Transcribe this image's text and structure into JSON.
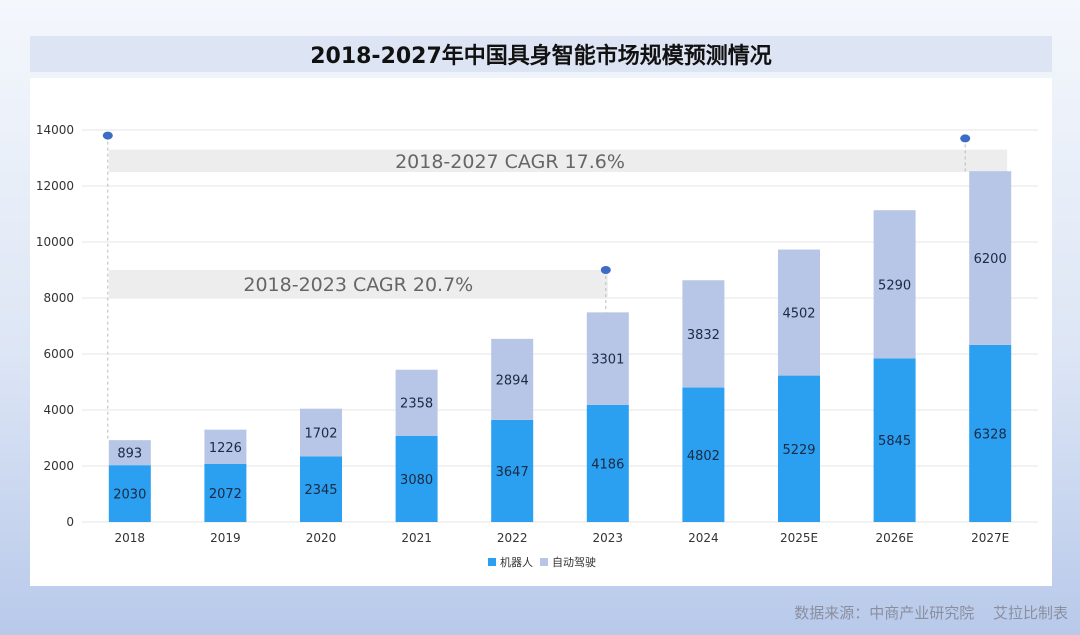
{
  "title": "2018-2027年中国具身智能市场规模预测情况",
  "source": {
    "label": "数据来源：中商产业研究院",
    "maker": "艾拉比制表"
  },
  "annotations": {
    "cagr_long": "2018-2027 CAGR 17.6%",
    "cagr_short": "2018-2023 CAGR 20.7%"
  },
  "colors": {
    "robot": "#2b9ff0",
    "auto": "#b7c6e6",
    "band": "#ededed",
    "marker": "#3d6cc4",
    "grid": "#e4e4e4"
  },
  "chart_data": {
    "type": "bar",
    "stacked": true,
    "title": "2018-2027年中国具身智能市场规模预测情况",
    "categories": [
      "2018",
      "2019",
      "2020",
      "2021",
      "2022",
      "2023",
      "2024",
      "2025E",
      "2026E",
      "2027E"
    ],
    "series": [
      {
        "name": "机器人",
        "values": [
          2030,
          2072,
          2345,
          3080,
          3647,
          4186,
          4802,
          5229,
          5845,
          6328
        ]
      },
      {
        "name": "自动驾驶",
        "values": [
          893,
          1226,
          1702,
          2358,
          2894,
          3301,
          3832,
          4502,
          5290,
          6200
        ]
      }
    ],
    "yticks": [
      "0",
      "2000",
      "4000",
      "6000",
      "8000",
      "10000",
      "12000",
      "14000"
    ],
    "ylim": [
      0,
      14000
    ],
    "grid": true,
    "legend": "bottom-center",
    "xlabel": "",
    "ylabel": ""
  }
}
